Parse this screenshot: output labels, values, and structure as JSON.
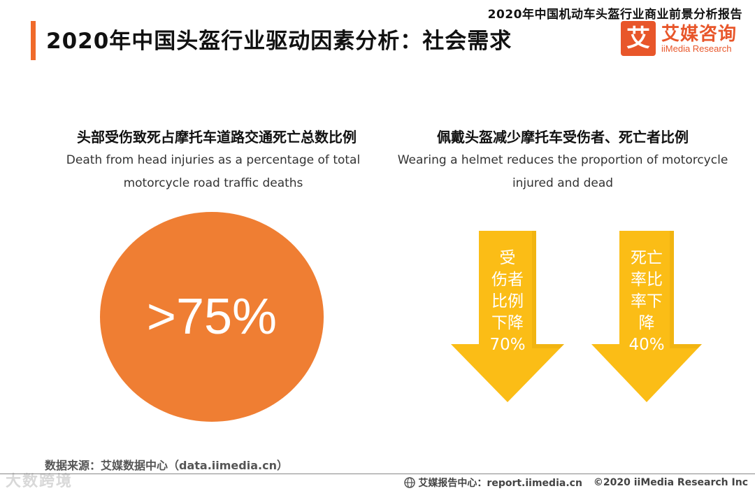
{
  "header": {
    "report_title": "2020年中国机动车头盔行业商业前景分析报告",
    "page_title": "2020年中国头盔行业驱动因素分析：社会需求",
    "logo": {
      "mark": "艾",
      "name_cn": "艾媒咨询",
      "name_en": "iiMedia Research"
    }
  },
  "left_panel": {
    "title_cn": "头部受伤致死占摩托车道路交通死亡总数比例",
    "title_en_line1": "Death from head injuries as a percentage of total",
    "title_en_line2": "motorcycle road traffic deaths",
    "stat": ">75%"
  },
  "right_panel": {
    "title_cn": "佩戴头盔减少摩托车受伤者、死亡者比例",
    "title_en_line1": "Wearing a helmet reduces the proportion of motorcycle",
    "title_en_line2": "injured and dead",
    "arrows": [
      {
        "lines": [
          "受",
          "伤者",
          "比例",
          "下降",
          "70%"
        ],
        "value": 70
      },
      {
        "lines": [
          "死亡",
          "率比",
          "率下",
          "降",
          "40%"
        ],
        "value": 40
      }
    ]
  },
  "footer": {
    "source": "数据来源：艾媒数据中心（data.iimedia.cn）",
    "report_center": "艾媒报告中心：report.iimedia.cn",
    "copyright": "©2020  iiMedia Research  Inc",
    "watermark": "大数跨境"
  },
  "colors": {
    "accent": "#f06a2a",
    "circle": "#ef7e33",
    "arrow": "#fbbd16",
    "logo": "#e8562a"
  }
}
